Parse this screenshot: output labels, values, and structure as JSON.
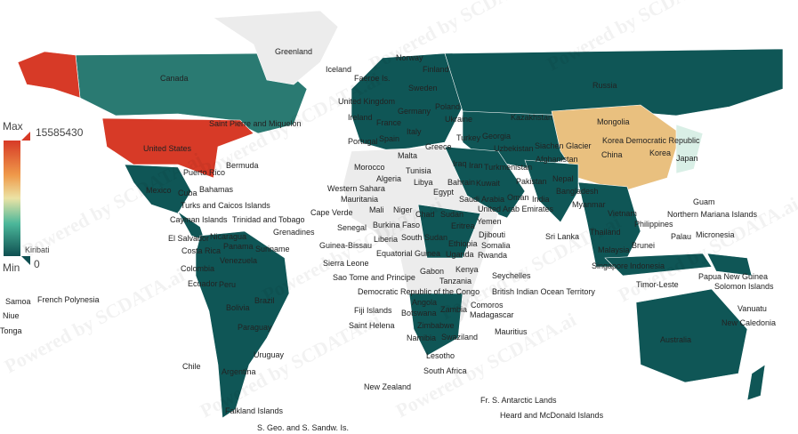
{
  "legend": {
    "max_label": "Max",
    "min_label": "Min",
    "max_value": "15585430",
    "min_value": "0",
    "min_country": "Kiribati",
    "colors": [
      "#d73a27",
      "#ef9a4a",
      "#ebe3a5",
      "#4bb79a",
      "#0f4f51"
    ]
  },
  "watermark": "Powered by SCDATA.ai",
  "colors": {
    "max": "#d73a27",
    "high": "#e9c07f",
    "low": "#d9efe6",
    "base": "#0f5656",
    "mid": "#2a7a72",
    "nodata": "#ececec"
  },
  "countries": [
    "Greenland",
    "Iceland",
    "Faeroe Is.",
    "Norway",
    "Finland",
    "Sweden",
    "Russia",
    "Canada",
    "United States",
    "Saint Pierre and Miquelon",
    "Bermuda",
    "Mexico",
    "Bahamas",
    "Puerto Rico",
    "Turks and Caicos Islands",
    "Cuba",
    "Cayman Islands",
    "El Salvador",
    "Nicaragua",
    "Costa Rica",
    "Trinidad and Tobago",
    "Grenadines",
    "Panama",
    "Venezuela",
    "Colombia",
    "Suriname",
    "Ecuador",
    "Peru",
    "Brazil",
    "Bolivia",
    "Paraguay",
    "Uruguay",
    "Chile",
    "Argentina",
    "Falkland Islands",
    "S. Geo. and S. Sandw. Is.",
    "United Kingdom",
    "Ireland",
    "Portugal",
    "Spain",
    "France",
    "Germany",
    "Poland",
    "Ukraine",
    "Italy",
    "Malta",
    "Greece",
    "Turkey",
    "Georgia",
    "Kazakhstan",
    "Mongolia",
    "Uzbekistan",
    "Turkmenistan",
    "Afghanistan",
    "Pakistan",
    "Iran",
    "Iraq",
    "Kuwait",
    "Bahrain",
    "Saudi Arabia",
    "United Arab Emirates",
    "Oman",
    "Yemen",
    "Siachen Glacier",
    "China",
    "Korea Democratic Republic",
    "Korea",
    "Japan",
    "Nepal",
    "Bangladesh",
    "India",
    "Sri Lanka",
    "Myanmar",
    "Vietnam",
    "Thailand",
    "Philippines",
    "Malaysia",
    "Singapore",
    "Indonesia",
    "Brunei",
    "Palau",
    "Micronesia",
    "Northern Mariana Islands",
    "Guam",
    "Papua New Guinea",
    "Solomon Islands",
    "Timor-Leste",
    "Vanuatu",
    "New Caledonia",
    "Australia",
    "New Zealand",
    "Fiji Islands",
    "Morocco",
    "Algeria",
    "Tunisia",
    "Libya",
    "Egypt",
    "Western Sahara",
    "Mauritania",
    "Mali",
    "Niger",
    "Chad",
    "Sudan",
    "Eritrea",
    "Djibouti",
    "Ethiopia",
    "Somalia",
    "Cape Verde",
    "Senegal",
    "Guinea-Bissau",
    "Sierra Leone",
    "Liberia",
    "Burkina Faso",
    "Equatorial Guinea",
    "Sao Tome and Principe",
    "Gabon",
    "Democratic Republic of the Congo",
    "Uganda",
    "Kenya",
    "Rwanda",
    "Tanzania",
    "Seychelles",
    "British Indian Ocean Territory",
    "Angola",
    "Zambia",
    "Comoros",
    "Madagascar",
    "Mauritius",
    "Zimbabwe",
    "Namibia",
    "Botswana",
    "Swaziland",
    "Lesotho",
    "South Africa",
    "Saint Helena",
    "Fr. S. Antarctic Lands",
    "Heard and McDonald Islands",
    "French Polynesia",
    "Samoa",
    "Niue",
    "Tonga",
    "South Sudan"
  ]
}
